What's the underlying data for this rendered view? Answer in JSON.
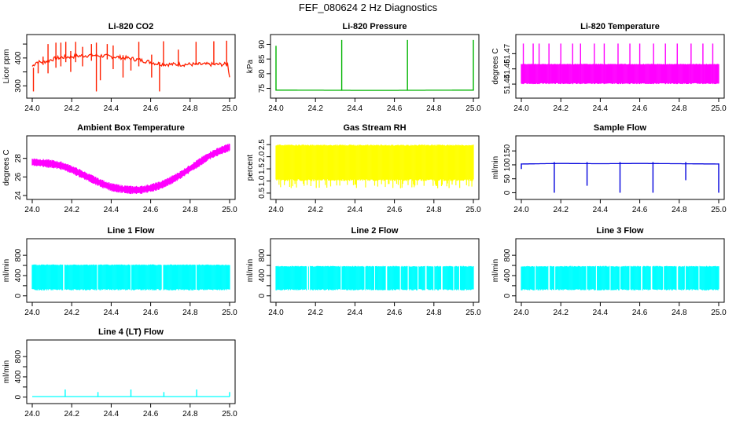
{
  "main_title": "FEF_080624  2 Hz Diagnostics",
  "chart_data": [
    {
      "type": "line",
      "title": "Li-820 CO2",
      "xlabel": "",
      "ylabel": "Licor ppm",
      "xlim": [
        24.0,
        25.0
      ],
      "ylim": [
        270,
        470
      ],
      "x_ticks": [
        "24.0",
        "24.2",
        "24.4",
        "24.6",
        "24.8",
        "25.0"
      ],
      "y_ticks": [
        {
          "value": 300,
          "label": "300"
        },
        {
          "value": 350,
          "label": ""
        },
        {
          "value": 400,
          "label": "400"
        },
        {
          "value": 450,
          "label": ""
        }
      ],
      "color": "#ff2000",
      "series": [
        {
          "x": [
            24.0,
            24.02,
            24.05,
            24.08,
            24.1,
            24.13,
            24.16,
            24.2,
            24.25,
            24.3,
            24.35,
            24.4,
            24.45,
            24.5,
            24.55,
            24.6,
            24.63,
            24.66,
            24.7,
            24.75,
            24.8,
            24.85,
            24.9,
            24.95,
            24.99,
            25.0
          ],
          "y": [
            370,
            385,
            385,
            390,
            395,
            400,
            403,
            405,
            408,
            410,
            408,
            405,
            402,
            398,
            392,
            385,
            380,
            378,
            377,
            377,
            377,
            377,
            377,
            377,
            377,
            335
          ]
        }
      ],
      "spikes": [
        {
          "x": 24.006,
          "min": 280,
          "max": 365
        },
        {
          "x": 24.03,
          "min": 345,
          "max": 380
        },
        {
          "x": 24.055,
          "min": 375,
          "max": 405
        },
        {
          "x": 24.08,
          "min": 345,
          "max": 450
        },
        {
          "x": 24.12,
          "min": 365,
          "max": 455
        },
        {
          "x": 24.145,
          "min": 370,
          "max": 455
        },
        {
          "x": 24.17,
          "min": 385,
          "max": 458
        },
        {
          "x": 24.195,
          "min": 350,
          "max": 425
        },
        {
          "x": 24.22,
          "min": 385,
          "max": 458
        },
        {
          "x": 24.255,
          "min": 370,
          "max": 440
        },
        {
          "x": 24.3,
          "min": 390,
          "max": 450
        },
        {
          "x": 24.325,
          "min": 280,
          "max": 455
        },
        {
          "x": 24.345,
          "min": 320,
          "max": 405
        },
        {
          "x": 24.38,
          "min": 395,
          "max": 450
        },
        {
          "x": 24.41,
          "min": 360,
          "max": 445
        },
        {
          "x": 24.46,
          "min": 330,
          "max": 410
        },
        {
          "x": 24.5,
          "min": 355,
          "max": 395
        },
        {
          "x": 24.54,
          "min": 370,
          "max": 458
        },
        {
          "x": 24.605,
          "min": 330,
          "max": 412
        },
        {
          "x": 24.645,
          "min": 280,
          "max": 385
        },
        {
          "x": 24.665,
          "min": 375,
          "max": 460
        },
        {
          "x": 24.74,
          "min": 372,
          "max": 430
        },
        {
          "x": 24.83,
          "min": 375,
          "max": 458
        },
        {
          "x": 24.92,
          "min": 375,
          "max": 460
        },
        {
          "x": 24.985,
          "min": 375,
          "max": 462
        }
      ]
    },
    {
      "type": "line",
      "title": "Li-820 Pressure",
      "xlabel": "",
      "ylabel": "kPa",
      "xlim": [
        24.0,
        25.0
      ],
      "ylim": [
        73,
        92
      ],
      "x_ticks": [
        "24.0",
        "24.2",
        "24.4",
        "24.6",
        "24.8",
        "25.0"
      ],
      "y_ticks": [
        {
          "value": 75,
          "label": "75"
        },
        {
          "value": 80,
          "label": "80"
        },
        {
          "value": 85,
          "label": "85"
        },
        {
          "value": 90,
          "label": "90"
        }
      ],
      "color": "#00b400",
      "series": [
        {
          "x": [
            24.0,
            24.5,
            25.0
          ],
          "y": [
            74.4,
            74.3,
            74.4
          ]
        }
      ],
      "spikes": [
        {
          "x": 24.0,
          "min": 74.2,
          "max": 89.5
        },
        {
          "x": 24.333,
          "min": 74.2,
          "max": 91.5
        },
        {
          "x": 24.666,
          "min": 74.2,
          "max": 91.5
        },
        {
          "x": 25.0,
          "min": 74.2,
          "max": 91.5
        }
      ]
    },
    {
      "type": "line",
      "title": "Li-820 Temperature",
      "xlabel": "",
      "ylabel": "degrees C",
      "xlim": [
        24.0,
        25.0
      ],
      "ylim": [
        51.43,
        51.485
      ],
      "x_ticks": [
        "24.0",
        "24.2",
        "24.4",
        "24.6",
        "24.8",
        "25.0"
      ],
      "y_ticks": [
        {
          "value": 51.44,
          "label": "51.44"
        },
        {
          "value": 51.455,
          "label": "51.46"
        },
        {
          "value": 51.47,
          "label": "51.47"
        }
      ],
      "color": "#ff00ff",
      "series": [
        {
          "x": [
            24.0,
            25.0
          ],
          "y": [
            51.44,
            51.44
          ]
        }
      ],
      "band": {
        "min": 51.44,
        "max": 51.46
      },
      "spikes": [
        {
          "x": 24.01,
          "min": 51.44,
          "max": 51.48
        },
        {
          "x": 24.06,
          "min": 51.44,
          "max": 51.48
        },
        {
          "x": 24.09,
          "min": 51.44,
          "max": 51.48
        },
        {
          "x": 24.14,
          "min": 51.44,
          "max": 51.48
        },
        {
          "x": 24.2,
          "min": 51.44,
          "max": 51.48
        },
        {
          "x": 24.26,
          "min": 51.44,
          "max": 51.48
        },
        {
          "x": 24.3,
          "min": 51.44,
          "max": 51.48
        },
        {
          "x": 24.37,
          "min": 51.44,
          "max": 51.48
        },
        {
          "x": 24.42,
          "min": 51.44,
          "max": 51.48
        },
        {
          "x": 24.49,
          "min": 51.44,
          "max": 51.48
        },
        {
          "x": 24.55,
          "min": 51.44,
          "max": 51.48
        },
        {
          "x": 24.6,
          "min": 51.44,
          "max": 51.48
        },
        {
          "x": 24.67,
          "min": 51.44,
          "max": 51.48
        },
        {
          "x": 24.73,
          "min": 51.44,
          "max": 51.48
        },
        {
          "x": 24.79,
          "min": 51.44,
          "max": 51.48
        },
        {
          "x": 24.86,
          "min": 51.44,
          "max": 51.48
        },
        {
          "x": 24.92,
          "min": 51.44,
          "max": 51.48
        },
        {
          "x": 24.97,
          "min": 51.44,
          "max": 51.48
        }
      ]
    },
    {
      "type": "line",
      "title": "Ambient Box Temperature",
      "xlabel": "",
      "ylabel": "degrees C",
      "xlim": [
        24.0,
        25.0
      ],
      "ylim": [
        24,
        30
      ],
      "x_ticks": [
        "24.0",
        "24.2",
        "24.4",
        "24.6",
        "24.8",
        "25.0"
      ],
      "y_ticks": [
        {
          "value": 24,
          "label": "24"
        },
        {
          "value": 26,
          "label": "26"
        },
        {
          "value": 28,
          "label": "28"
        }
      ],
      "color": "#ff00ff",
      "series": [
        {
          "x": [
            24.0,
            24.05,
            24.1,
            24.15,
            24.2,
            24.25,
            24.3,
            24.35,
            24.4,
            24.45,
            24.5,
            24.55,
            24.6,
            24.65,
            24.7,
            24.75,
            24.8,
            24.85,
            24.9,
            24.95,
            25.0
          ],
          "y": [
            27.6,
            27.5,
            27.4,
            27.2,
            26.8,
            26.3,
            25.8,
            25.3,
            24.9,
            24.7,
            24.6,
            24.6,
            24.8,
            25.1,
            25.6,
            26.2,
            26.9,
            27.6,
            28.3,
            28.8,
            29.2
          ]
        }
      ],
      "noise": 0.45
    },
    {
      "type": "line",
      "title": "Gas Stream RH",
      "xlabel": "",
      "ylabel": "percent",
      "xlim": [
        24.0,
        25.0
      ],
      "ylim": [
        0.4,
        2.7
      ],
      "x_ticks": [
        "24.0",
        "24.2",
        "24.4",
        "24.6",
        "24.8",
        "25.0"
      ],
      "y_ticks": [
        {
          "value": 0.5,
          "label": "0.5"
        },
        {
          "value": 1.0,
          "label": "1.0"
        },
        {
          "value": 1.5,
          "label": "1.5"
        },
        {
          "value": 2.0,
          "label": "2.0"
        },
        {
          "value": 2.5,
          "label": "2.5"
        }
      ],
      "color": "#ffff00",
      "series": [
        {
          "x": [
            24.0,
            25.0
          ],
          "y": [
            1.6,
            1.6
          ]
        }
      ],
      "band": {
        "min": 1.0,
        "max": 2.5
      },
      "spike_low": 0.7
    },
    {
      "type": "line",
      "title": "Sample Flow",
      "xlabel": "",
      "ylabel": "ml/min",
      "xlim": [
        24.0,
        25.0
      ],
      "ylim": [
        -10,
        190
      ],
      "x_ticks": [
        "24.0",
        "24.2",
        "24.4",
        "24.6",
        "24.8",
        "25.0"
      ],
      "y_ticks": [
        {
          "value": 0,
          "label": "0"
        },
        {
          "value": 50,
          "label": "50"
        },
        {
          "value": 100,
          "label": "100"
        },
        {
          "value": 150,
          "label": "150"
        }
      ],
      "color": "#0000dd",
      "series": [
        {
          "x": [
            24.0,
            24.2,
            24.4,
            24.6,
            24.8,
            25.0
          ],
          "y": [
            103,
            105,
            104,
            105,
            104,
            103
          ]
        }
      ],
      "spikes": [
        {
          "x": 24.0,
          "min": 85,
          "max": 105
        },
        {
          "x": 24.167,
          "min": 0,
          "max": 110
        },
        {
          "x": 24.333,
          "min": 25,
          "max": 110
        },
        {
          "x": 24.5,
          "min": 0,
          "max": 110
        },
        {
          "x": 24.667,
          "min": 0,
          "max": 110
        },
        {
          "x": 24.833,
          "min": 45,
          "max": 110
        },
        {
          "x": 25.0,
          "min": 0,
          "max": 105
        }
      ]
    },
    {
      "type": "line",
      "title": "Line 1 Flow",
      "xlabel": "",
      "ylabel": "ml/min",
      "xlim": [
        24.0,
        25.0
      ],
      "ylim": [
        -50,
        1050
      ],
      "x_ticks": [
        "24.0",
        "24.2",
        "24.4",
        "24.6",
        "24.8",
        "25.0"
      ],
      "y_ticks": [
        {
          "value": 0,
          "label": "0"
        },
        {
          "value": 200,
          "label": ""
        },
        {
          "value": 400,
          "label": "400"
        },
        {
          "value": 600,
          "label": ""
        },
        {
          "value": 800,
          "label": "800"
        }
      ],
      "color": "#00ffff",
      "series": [
        {
          "x": [
            24.0,
            25.0
          ],
          "y": [
            380,
            380
          ]
        }
      ],
      "band": {
        "min": 110,
        "max": 620
      },
      "gaps": [
        24.16,
        24.33,
        24.5,
        24.66,
        24.83
      ]
    },
    {
      "type": "line",
      "title": "Line 2 Flow",
      "xlabel": "",
      "ylabel": "ml/min",
      "xlim": [
        24.0,
        25.0
      ],
      "ylim": [
        -50,
        1050
      ],
      "x_ticks": [
        "24.0",
        "24.2",
        "24.4",
        "24.6",
        "24.8",
        "25.0"
      ],
      "y_ticks": [
        {
          "value": 0,
          "label": "0"
        },
        {
          "value": 200,
          "label": ""
        },
        {
          "value": 400,
          "label": "400"
        },
        {
          "value": 600,
          "label": ""
        },
        {
          "value": 800,
          "label": "800"
        }
      ],
      "color": "#00ffff",
      "series": [
        {
          "x": [
            24.0,
            25.0
          ],
          "y": [
            380,
            380
          ]
        }
      ],
      "band": {
        "min": 110,
        "max": 590
      },
      "gaps": [
        24.16,
        24.17,
        24.33,
        24.45,
        24.5,
        24.56,
        24.63,
        24.67,
        24.72,
        24.76,
        24.8,
        24.84,
        24.9,
        24.93
      ]
    },
    {
      "type": "line",
      "title": "Line 3 Flow",
      "xlabel": "",
      "ylabel": "ml/min",
      "xlim": [
        24.0,
        25.0
      ],
      "ylim": [
        -50,
        1050
      ],
      "x_ticks": [
        "24.0",
        "24.2",
        "24.4",
        "24.6",
        "24.8",
        "25.0"
      ],
      "y_ticks": [
        {
          "value": 0,
          "label": "0"
        },
        {
          "value": 200,
          "label": ""
        },
        {
          "value": 400,
          "label": "400"
        },
        {
          "value": 600,
          "label": ""
        },
        {
          "value": 800,
          "label": "800"
        }
      ],
      "color": "#00ffff",
      "series": [
        {
          "x": [
            24.0,
            25.0
          ],
          "y": [
            380,
            380
          ]
        }
      ],
      "band": {
        "min": 110,
        "max": 590
      },
      "gaps": [
        24.07,
        24.14,
        24.17,
        24.33,
        24.38,
        24.45,
        24.5,
        24.55,
        24.61,
        24.66,
        24.72,
        24.79,
        24.83,
        24.9
      ]
    },
    {
      "type": "line",
      "title": "Line 4 (LT) Flow",
      "xlabel": "",
      "ylabel": "ml/min",
      "xlim": [
        24.0,
        25.0
      ],
      "ylim": [
        -50,
        1050
      ],
      "x_ticks": [
        "24.0",
        "24.2",
        "24.4",
        "24.6",
        "24.8",
        "25.0"
      ],
      "y_ticks": [
        {
          "value": 0,
          "label": "0"
        },
        {
          "value": 200,
          "label": ""
        },
        {
          "value": 400,
          "label": "400"
        },
        {
          "value": 600,
          "label": ""
        },
        {
          "value": 800,
          "label": "800"
        }
      ],
      "color": "#00ffff",
      "series": [
        {
          "x": [
            24.0,
            25.0
          ],
          "y": [
            10,
            10
          ]
        }
      ],
      "spikes": [
        {
          "x": 24.167,
          "min": 10,
          "max": 150
        },
        {
          "x": 24.333,
          "min": 10,
          "max": 100
        },
        {
          "x": 24.5,
          "min": 10,
          "max": 150
        },
        {
          "x": 24.667,
          "min": 10,
          "max": 100
        },
        {
          "x": 24.833,
          "min": 10,
          "max": 150
        },
        {
          "x": 25.0,
          "min": 10,
          "max": 100
        }
      ]
    }
  ]
}
